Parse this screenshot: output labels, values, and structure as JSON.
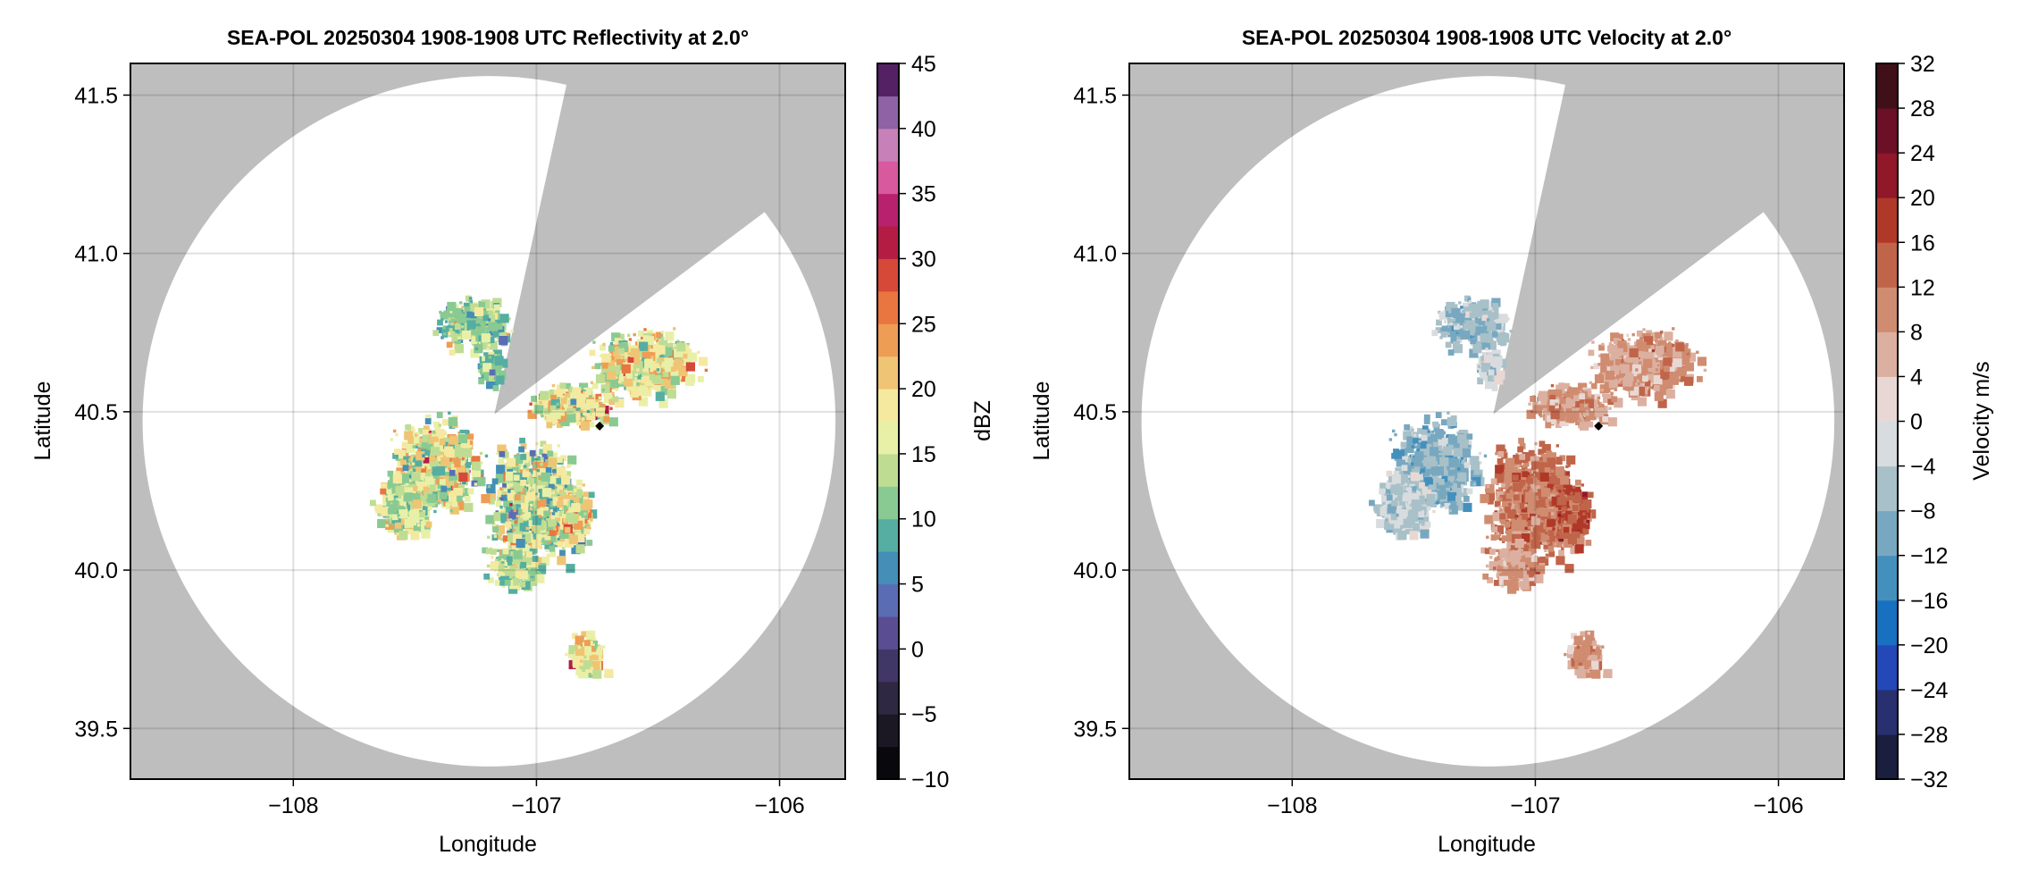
{
  "chart_data": [
    {
      "type": "heatmap",
      "title": "SEA-POL 20250304 1908-1908 UTC Reflectivity at 2.0°",
      "xlabel": "Longitude",
      "ylabel": "Latitude",
      "xlim": [
        -108.67,
        -105.73
      ],
      "ylim": [
        39.34,
        41.6
      ],
      "xticks": [
        -108,
        -107,
        -106
      ],
      "xtick_labels": [
        "−108",
        "−107",
        "−106"
      ],
      "yticks": [
        39.5,
        40.0,
        40.5,
        41.0,
        41.5
      ],
      "ytick_labels": [
        "39.5",
        "40.0",
        "40.5",
        "41.0",
        "41.5"
      ],
      "grid": true,
      "colorbar": {
        "label": "dBZ",
        "range": [
          -10,
          45
        ],
        "ticks": [
          -10,
          -5,
          0,
          5,
          10,
          15,
          20,
          25,
          30,
          35,
          40,
          45
        ],
        "tick_labels": [
          "−10",
          "−5",
          "0",
          "5",
          "10",
          "15",
          "20",
          "25",
          "30",
          "35",
          "40",
          "45"
        ]
      },
      "variable": "reflectivity"
    },
    {
      "type": "heatmap",
      "title": "SEA-POL 20250304 1908-1908 UTC Velocity at 2.0°",
      "xlabel": "Longitude",
      "ylabel": "Latitude",
      "xlim": [
        -108.67,
        -105.73
      ],
      "ylim": [
        39.34,
        41.6
      ],
      "xticks": [
        -108,
        -107,
        -106
      ],
      "xtick_labels": [
        "−108",
        "−107",
        "−106"
      ],
      "yticks": [
        39.5,
        40.0,
        40.5,
        41.0,
        41.5
      ],
      "ytick_labels": [
        "39.5",
        "40.0",
        "40.5",
        "41.0",
        "41.5"
      ],
      "grid": true,
      "colorbar": {
        "label": "Velocity m/s",
        "range": [
          -32,
          32
        ],
        "ticks": [
          -32,
          -28,
          -24,
          -20,
          -16,
          -12,
          -8,
          -4,
          0,
          4,
          8,
          12,
          16,
          20,
          24,
          28,
          32
        ],
        "tick_labels": [
          "−32",
          "−28",
          "−24",
          "−20",
          "−16",
          "−12",
          "−8",
          "−4",
          "0",
          "4",
          "8",
          "12",
          "16",
          "20",
          "24",
          "28",
          "32"
        ]
      },
      "variable": "velocity"
    }
  ],
  "radar": {
    "center": {
      "lon": -107.195,
      "lat": 40.47
    },
    "coverage_radius_deg": {
      "lon": 1.425,
      "lat": 1.09
    },
    "blocked_sector_edges": [
      {
        "lon": -106.88,
        "lat": 41.52
      },
      {
        "lon": -106.08,
        "lat": 41.12
      }
    ],
    "marker": {
      "lon": -106.74,
      "lat": 40.455,
      "color": "#000000"
    }
  },
  "echo_regions": [
    {
      "lon": -107.27,
      "lat": 40.78,
      "spread_lon": 0.1,
      "spread_lat": 0.055,
      "dbz": 12,
      "dbz_var": 5,
      "vel": -6
    },
    {
      "lon": -107.2,
      "lat": 40.65,
      "spread_lon": 0.04,
      "spread_lat": 0.04,
      "dbz": 10,
      "dbz_var": 4,
      "vel": -3
    },
    {
      "lon": -106.55,
      "lat": 40.66,
      "spread_lon": 0.15,
      "spread_lat": 0.07,
      "dbz": 17,
      "dbz_var": 6,
      "vel": 6
    },
    {
      "lon": -106.86,
      "lat": 40.53,
      "spread_lon": 0.12,
      "spread_lat": 0.045,
      "dbz": 17,
      "dbz_var": 7,
      "vel": 7
    },
    {
      "lon": -107.42,
      "lat": 40.34,
      "spread_lon": 0.12,
      "spread_lat": 0.1,
      "dbz": 16,
      "dbz_var": 7,
      "vel": -7
    },
    {
      "lon": -107.55,
      "lat": 40.22,
      "spread_lon": 0.08,
      "spread_lat": 0.07,
      "dbz": 14,
      "dbz_var": 5,
      "vel": -3
    },
    {
      "lon": -107.02,
      "lat": 40.22,
      "spread_lon": 0.13,
      "spread_lat": 0.13,
      "dbz": 14,
      "dbz_var": 7,
      "vel": 11
    },
    {
      "lon": -107.1,
      "lat": 40.02,
      "spread_lon": 0.07,
      "spread_lat": 0.05,
      "dbz": 13,
      "dbz_var": 5,
      "vel": 8
    },
    {
      "lon": -106.8,
      "lat": 39.74,
      "spread_lon": 0.05,
      "spread_lat": 0.05,
      "dbz": 17,
      "dbz_var": 4,
      "vel": 7
    },
    {
      "lon": -106.86,
      "lat": 40.18,
      "spread_lon": 0.05,
      "spread_lat": 0.07,
      "dbz": 18,
      "dbz_var": 6,
      "vel": 14
    }
  ],
  "colors": {
    "background": "#bebebe",
    "coverage": "#ffffff",
    "grid": "#000000",
    "reflectivity_stops": [
      [
        -10,
        "#000000"
      ],
      [
        -5,
        "#25202f"
      ],
      [
        0,
        "#4a3f7a"
      ],
      [
        2.5,
        "#6a5aa8"
      ],
      [
        5,
        "#4a80c0"
      ],
      [
        7.5,
        "#3e9cae"
      ],
      [
        10,
        "#6cbf94"
      ],
      [
        12.5,
        "#a6d490"
      ],
      [
        15,
        "#d6e596"
      ],
      [
        17.5,
        "#fafab8"
      ],
      [
        20,
        "#f0d888"
      ],
      [
        22.5,
        "#eeb060"
      ],
      [
        25,
        "#ee8a48"
      ],
      [
        27.5,
        "#e46038"
      ],
      [
        30,
        "#c83038"
      ],
      [
        32.5,
        "#a00850"
      ],
      [
        35,
        "#d03a8c"
      ],
      [
        37.5,
        "#e078b0"
      ],
      [
        40,
        "#b08ac0"
      ],
      [
        42.5,
        "#6c3a88"
      ],
      [
        45,
        "#3a0840"
      ]
    ],
    "velocity_bins": [
      "#1a1f40",
      "#283070",
      "#2448b8",
      "#1870c0",
      "#4490bd",
      "#78a8c0",
      "#a8c0c8",
      "#d8dcdf",
      "#e8d8d4",
      "#dcb0a0",
      "#d08c70",
      "#c0644a",
      "#b03828",
      "#901828",
      "#6c1028",
      "#401018"
    ]
  }
}
